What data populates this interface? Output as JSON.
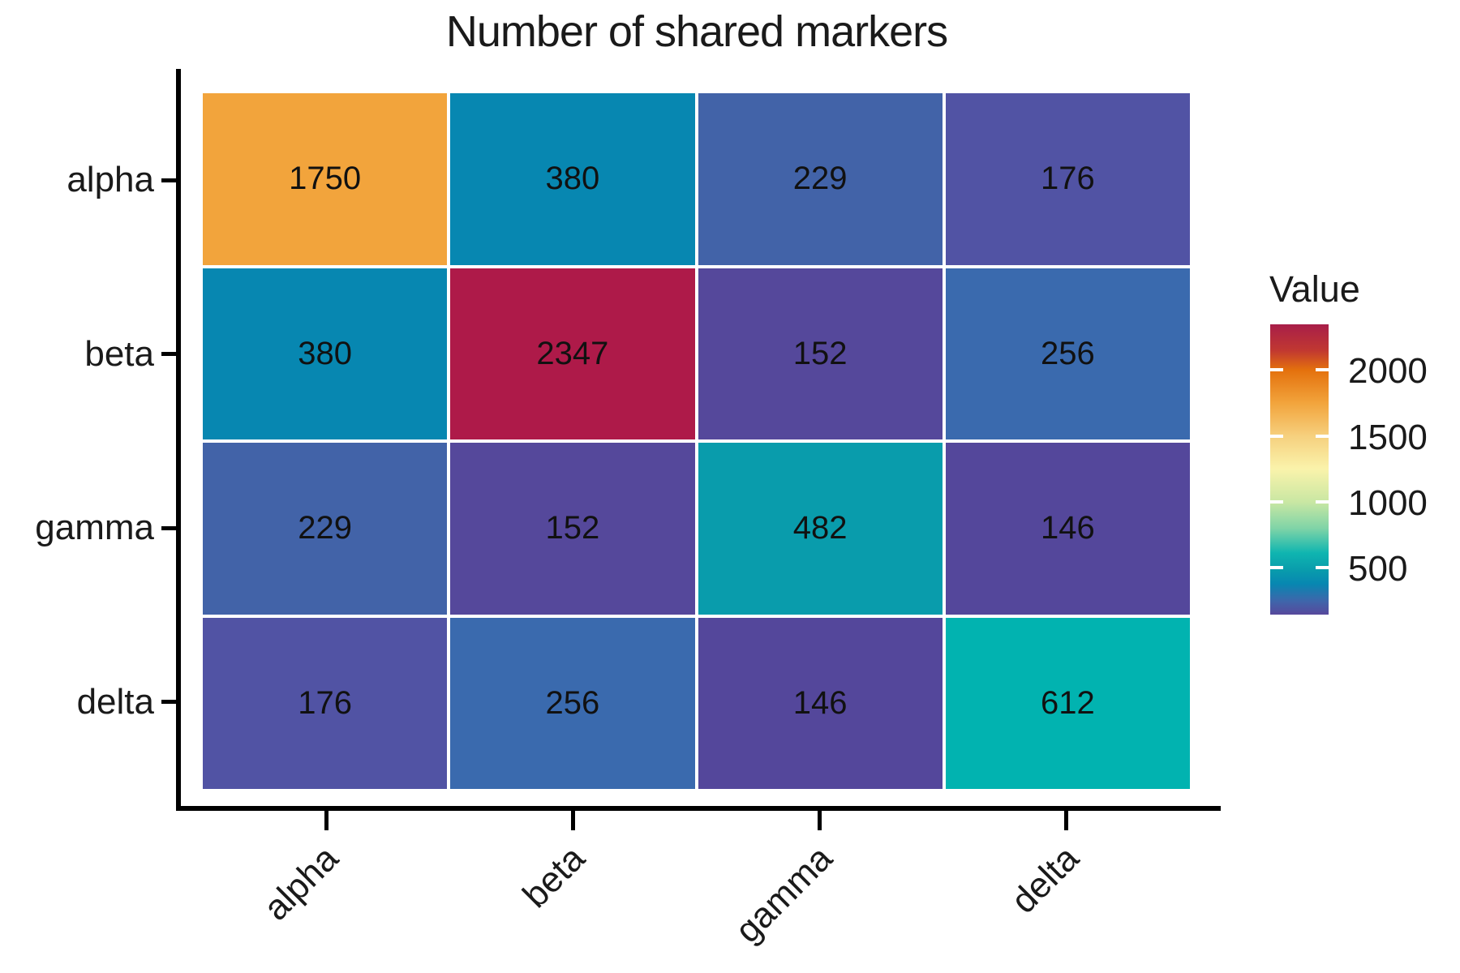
{
  "chart_data": {
    "type": "heatmap",
    "title": "Number of shared markers",
    "x_categories": [
      "alpha",
      "beta",
      "gamma",
      "delta"
    ],
    "y_categories": [
      "alpha",
      "beta",
      "gamma",
      "delta"
    ],
    "values": [
      [
        1750,
        380,
        229,
        176
      ],
      [
        380,
        2347,
        152,
        256
      ],
      [
        229,
        152,
        482,
        146
      ],
      [
        176,
        256,
        146,
        612
      ]
    ],
    "vmin": 146,
    "vmax": 2347,
    "cell_colors": [
      [
        "#F2A43C",
        "#0787B1",
        "#4263A8",
        "#5153A4"
      ],
      [
        "#0787B1",
        "#AE1A49",
        "#55489B",
        "#3A6AAE"
      ],
      [
        "#4263A8",
        "#55489B",
        "#099CAC",
        "#54479B"
      ],
      [
        "#5153A4",
        "#3A6AAE",
        "#54479B",
        "#01B3B0"
      ]
    ],
    "text_color": "#111111",
    "axis_color": "#000000",
    "grid": "off",
    "legend": {
      "title": "Value",
      "position": "right",
      "ticks": [
        2000,
        1500,
        1000,
        500
      ],
      "gradient_stops": [
        {
          "value": 2347,
          "color": "#A81E49"
        },
        {
          "value": 2150,
          "color": "#C13831"
        },
        {
          "value": 2000,
          "color": "#E4710D"
        },
        {
          "value": 1750,
          "color": "#F2A43C"
        },
        {
          "value": 1500,
          "color": "#F6D07E"
        },
        {
          "value": 1250,
          "color": "#FAF3AB"
        },
        {
          "value": 1000,
          "color": "#C9E7A3"
        },
        {
          "value": 800,
          "color": "#7FD4A7"
        },
        {
          "value": 612,
          "color": "#0FB5B0"
        },
        {
          "value": 482,
          "color": "#099CAC"
        },
        {
          "value": 380,
          "color": "#0787B1"
        },
        {
          "value": 250,
          "color": "#3E66AB"
        },
        {
          "value": 146,
          "color": "#57489C"
        }
      ]
    }
  }
}
